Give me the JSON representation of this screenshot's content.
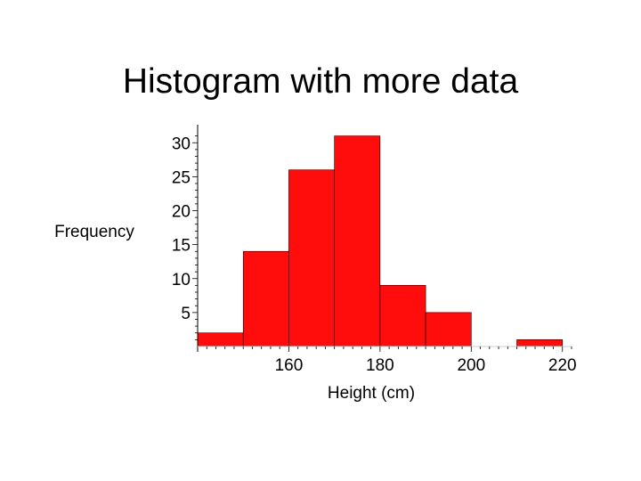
{
  "slide": {
    "title": "Histogram with more data"
  },
  "chart_data": {
    "type": "bar",
    "title": "Histogram with more data",
    "xlabel": "Height (cm)",
    "ylabel": "Frequency",
    "bin_width": 10,
    "bins": [
      {
        "start": 140,
        "end": 150,
        "count": 2
      },
      {
        "start": 150,
        "end": 160,
        "count": 14
      },
      {
        "start": 160,
        "end": 170,
        "count": 26
      },
      {
        "start": 170,
        "end": 180,
        "count": 31
      },
      {
        "start": 180,
        "end": 190,
        "count": 9
      },
      {
        "start": 190,
        "end": 200,
        "count": 5
      },
      {
        "start": 200,
        "end": 210,
        "count": 0
      },
      {
        "start": 210,
        "end": 220,
        "count": 1
      }
    ],
    "xlim": [
      140,
      222
    ],
    "ylim": [
      0,
      32
    ],
    "xticks": [
      "160",
      "180",
      "200",
      "220"
    ],
    "yticks": [
      "5",
      "10",
      "15",
      "20",
      "25",
      "30"
    ],
    "grid": false,
    "bar_color": "#ff0d0d",
    "bar_edge_color": "#000000"
  }
}
